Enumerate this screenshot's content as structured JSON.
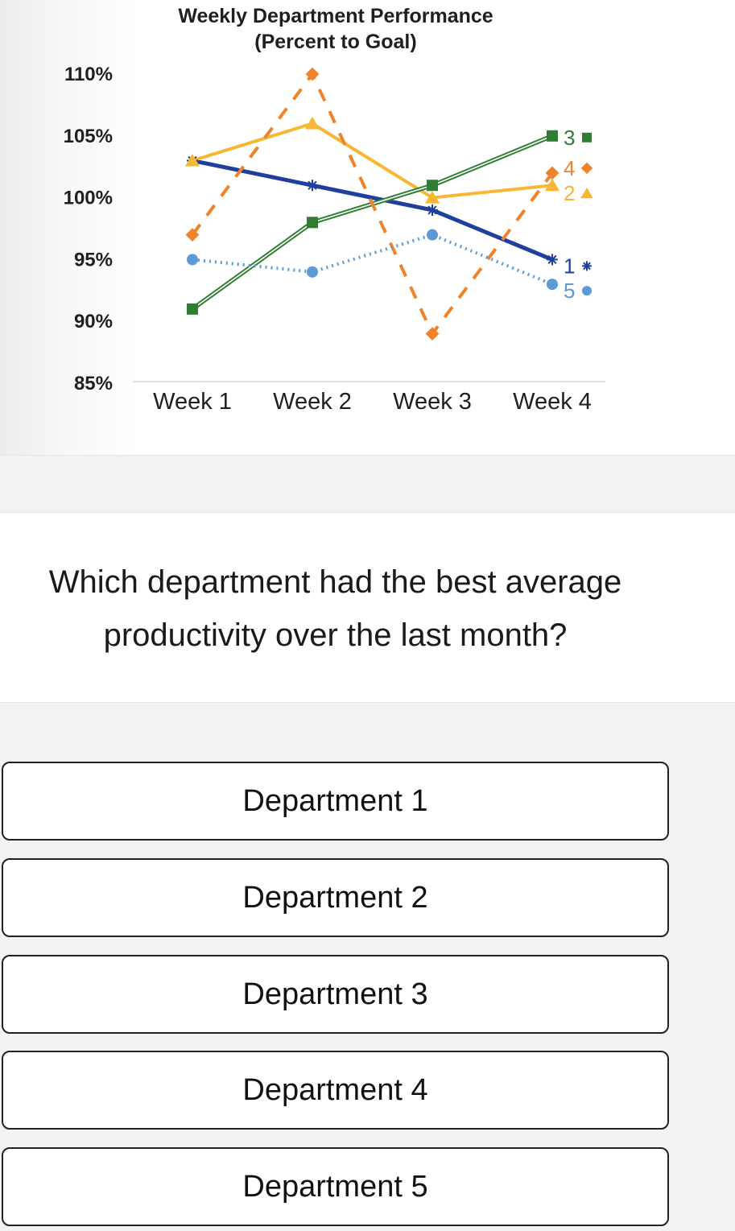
{
  "chart_data": {
    "type": "line",
    "title": "Weekly Department Performance",
    "subtitle": "(Percent to Goal)",
    "categories": [
      "Week 1",
      "Week 2",
      "Week 3",
      "Week 4"
    ],
    "y_ticks": [
      110,
      105,
      100,
      95,
      90,
      85
    ],
    "y_tick_labels": [
      "110%",
      "105%",
      "100%",
      "95%",
      "90%",
      "85%"
    ],
    "ylim": [
      85,
      110
    ],
    "grid": false,
    "legend": "inline labels at right end of each line",
    "series": [
      {
        "name": "1",
        "marker": "asterisk",
        "style": "solid",
        "color": "#1f3f9e",
        "values": [
          103,
          101,
          99,
          95
        ]
      },
      {
        "name": "2",
        "marker": "triangle",
        "style": "solid",
        "color": "#f7b733",
        "values": [
          103,
          106,
          100,
          101
        ]
      },
      {
        "name": "3",
        "marker": "square",
        "style": "double",
        "color": "#2e7d32",
        "values": [
          91,
          98,
          101,
          105
        ]
      },
      {
        "name": "4",
        "marker": "diamond",
        "style": "dashed",
        "color": "#f0832a",
        "values": [
          97,
          110,
          89,
          102
        ]
      },
      {
        "name": "5",
        "marker": "circle",
        "style": "dotted",
        "color": "#5b9bd5",
        "values": [
          95,
          94,
          97,
          93
        ]
      }
    ]
  },
  "question": {
    "line1": "Which department had the best average",
    "line2": "productivity over the last month?"
  },
  "options": [
    {
      "label": "Department 1"
    },
    {
      "label": "Department 2"
    },
    {
      "label": "Department 3"
    },
    {
      "label": "Department 4"
    },
    {
      "label": "Department 5"
    }
  ]
}
